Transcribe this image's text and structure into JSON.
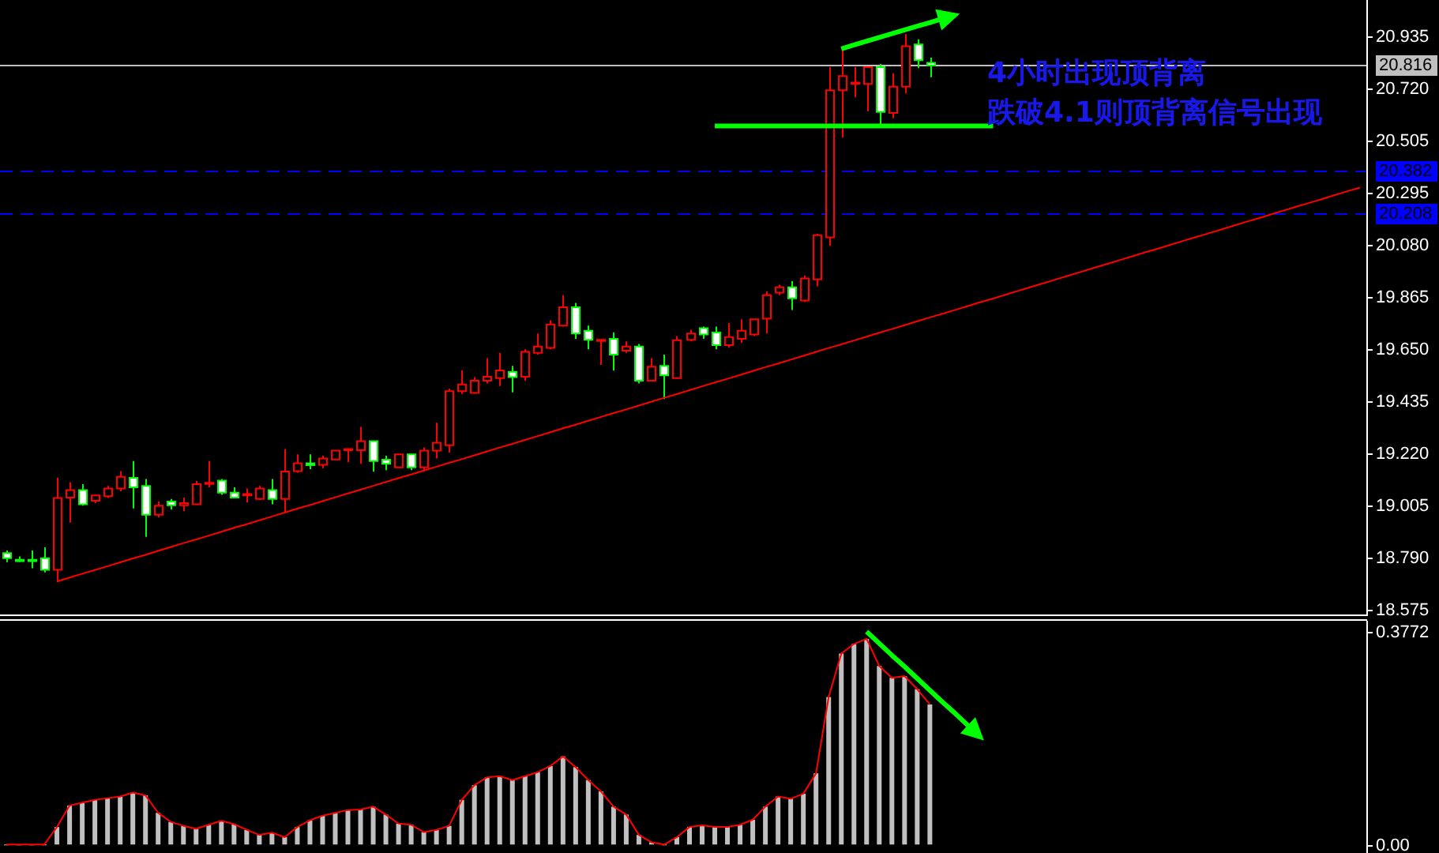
{
  "chart_data": [
    {
      "type": "candlestick",
      "categories": [
        null,
        null,
        null,
        null,
        null,
        null,
        null,
        null,
        null,
        null,
        null,
        null,
        null,
        null,
        null,
        null,
        null,
        null,
        null,
        null,
        null,
        null,
        null,
        null,
        null,
        null,
        null,
        null,
        null,
        null,
        null,
        null,
        null,
        null,
        null,
        null,
        null,
        null,
        null,
        null,
        null,
        null,
        null,
        null,
        null,
        null,
        null,
        null,
        null,
        null,
        null,
        null,
        null,
        null,
        null,
        null,
        null,
        null,
        null,
        null,
        null,
        null,
        null,
        null,
        null,
        null,
        null,
        null,
        null,
        null,
        null,
        null,
        null,
        null,
        null,
        null,
        null,
        null,
        null,
        null,
        null,
        null,
        null,
        null,
        null,
        null,
        null,
        null,
        null,
        null,
        null,
        null,
        null,
        null,
        null,
        null,
        null,
        null,
        null,
        null,
        null,
        null,
        null,
        null,
        null,
        null,
        null,
        null
      ],
      "ohlc": [
        [
          18.807,
          18.818,
          18.77,
          18.786
        ],
        [
          18.779,
          18.793,
          18.77,
          18.777
        ],
        [
          18.779,
          18.818,
          18.744,
          18.775
        ],
        [
          18.786,
          18.831,
          18.727,
          18.738
        ],
        [
          18.738,
          19.117,
          18.688,
          19.034
        ],
        [
          19.036,
          19.099,
          18.932,
          19.067
        ],
        [
          19.067,
          19.091,
          19.002,
          19.008
        ],
        [
          19.023,
          19.045,
          19.013,
          19.045
        ],
        [
          19.041,
          19.084,
          19.034,
          19.073
        ],
        [
          19.073,
          19.145,
          19.062,
          19.121
        ],
        [
          19.117,
          19.186,
          18.991,
          19.078
        ],
        [
          19.084,
          19.112,
          18.874,
          18.965
        ],
        [
          18.965,
          19.019,
          18.954,
          19.002
        ],
        [
          19.019,
          19.03,
          18.987,
          19.004
        ],
        [
          19.004,
          19.036,
          18.98,
          19.013
        ],
        [
          19.008,
          19.104,
          19.008,
          19.091
        ],
        [
          19.093,
          19.186,
          19.078,
          19.097
        ],
        [
          19.106,
          19.112,
          19.047,
          19.056
        ],
        [
          19.056,
          19.078,
          19.036,
          19.036
        ],
        [
          19.047,
          19.073,
          19.015,
          19.05
        ],
        [
          19.03,
          19.084,
          19.026,
          19.073
        ],
        [
          19.067,
          19.112,
          19.008,
          19.03
        ],
        [
          19.03,
          19.236,
          18.971,
          19.143
        ],
        [
          19.145,
          19.214,
          19.138,
          19.177
        ],
        [
          19.177,
          19.214,
          19.153,
          19.169
        ],
        [
          19.171,
          19.208,
          19.156,
          19.197
        ],
        [
          19.193,
          19.229,
          19.193,
          19.229
        ],
        [
          19.234,
          19.236,
          19.182,
          19.236
        ],
        [
          19.231,
          19.327,
          19.175,
          19.268
        ],
        [
          19.268,
          19.268,
          19.143,
          19.186
        ],
        [
          19.192,
          19.208,
          19.149,
          19.175
        ],
        [
          19.16,
          19.214,
          19.16,
          19.214
        ],
        [
          19.214,
          19.214,
          19.149,
          19.16
        ],
        [
          19.16,
          19.242,
          19.143,
          19.229
        ],
        [
          19.229,
          19.344,
          19.197,
          19.262
        ],
        [
          19.251,
          19.484,
          19.221,
          19.474
        ],
        [
          19.474,
          19.56,
          19.463,
          19.502
        ],
        [
          19.467,
          19.532,
          19.463,
          19.517
        ],
        [
          19.517,
          19.61,
          19.506,
          19.534
        ],
        [
          19.528,
          19.632,
          19.495,
          19.56
        ],
        [
          19.554,
          19.578,
          19.469,
          19.532
        ],
        [
          19.534,
          19.647,
          19.517,
          19.636
        ],
        [
          19.632,
          19.712,
          19.625,
          19.658
        ],
        [
          19.652,
          19.766,
          19.647,
          19.749
        ],
        [
          19.744,
          19.87,
          19.74,
          19.82
        ],
        [
          19.82,
          19.838,
          19.69,
          19.712
        ],
        [
          19.723,
          19.744,
          19.647,
          19.686
        ],
        [
          19.684,
          19.686,
          19.582,
          19.686
        ],
        [
          19.69,
          19.716,
          19.56,
          19.625
        ],
        [
          19.641,
          19.679,
          19.632,
          19.658
        ],
        [
          19.658,
          19.669,
          19.506,
          19.517
        ],
        [
          19.517,
          19.61,
          19.517,
          19.575
        ],
        [
          19.578,
          19.625,
          19.442,
          19.539
        ],
        [
          19.528,
          19.701,
          19.528,
          19.684
        ],
        [
          19.686,
          19.727,
          19.679,
          19.712
        ],
        [
          19.734,
          19.74,
          19.69,
          19.708
        ],
        [
          19.716,
          19.74,
          19.647,
          19.664
        ],
        [
          19.664,
          19.755,
          19.653,
          19.697
        ],
        [
          19.69,
          19.77,
          19.673,
          19.723
        ],
        [
          19.708,
          19.77,
          19.701,
          19.77
        ],
        [
          19.773,
          19.885,
          19.712,
          19.87
        ],
        [
          19.88,
          19.913,
          19.87,
          19.902
        ],
        [
          19.902,
          19.928,
          19.809,
          19.857
        ],
        [
          19.848,
          19.95,
          19.842,
          19.939
        ],
        [
          19.935,
          20.123,
          19.906,
          20.117
        ],
        [
          20.108,
          20.809,
          20.073,
          20.714
        ],
        [
          20.714,
          20.88,
          20.519,
          20.773
        ],
        [
          20.742,
          20.809,
          20.686,
          20.746
        ],
        [
          20.74,
          20.809,
          20.627,
          20.809
        ],
        [
          20.809,
          20.822,
          20.567,
          20.625
        ],
        [
          20.621,
          20.783,
          20.599,
          20.729
        ],
        [
          20.729,
          20.945,
          20.701,
          20.896
        ],
        [
          20.903,
          20.924,
          20.805,
          20.838
        ],
        [
          20.827,
          20.848,
          20.768,
          20.816
        ],
        null,
        null,
        null,
        null,
        null,
        null,
        null,
        null,
        null,
        null,
        null,
        null,
        null,
        null,
        null,
        null,
        null,
        null,
        null,
        null,
        null,
        null,
        null,
        null,
        null,
        null,
        null,
        null,
        null,
        null,
        null,
        null,
        null,
        null
      ],
      "colors": [
        "#00ff00",
        "#00ff00",
        "#00ff00",
        "#00ff00",
        "#ff0000",
        "#ff0000",
        "#00ff00",
        "#ff0000",
        "#ff0000",
        "#ff0000",
        "#00ff00",
        "#00ff00",
        "#ff0000",
        "#00ff00",
        "#ff0000",
        "#ff0000",
        "#ff0000",
        "#00ff00",
        "#00ff00",
        "#ff0000",
        "#ff0000",
        "#00ff00",
        "#ff0000",
        "#ff0000",
        "#00ff00",
        "#ff0000",
        "#ff0000",
        "#ff0000",
        "#ff0000",
        "#00ff00",
        "#00ff00",
        "#ff0000",
        "#00ff00",
        "#ff0000",
        "#ff0000",
        "#ff0000",
        "#ff0000",
        "#ff0000",
        "#ff0000",
        "#ff0000",
        "#00ff00",
        "#ff0000",
        "#ff0000",
        "#ff0000",
        "#ff0000",
        "#00ff00",
        "#00ff00",
        "#ff0000",
        "#00ff00",
        "#ff0000",
        "#00ff00",
        "#ff0000",
        "#00ff00",
        "#ff0000",
        "#ff0000",
        "#00ff00",
        "#00ff00",
        "#ff0000",
        "#ff0000",
        "#ff0000",
        "#ff0000",
        "#ff0000",
        "#00ff00",
        "#ff0000",
        "#ff0000",
        "#ff0000",
        "#ff0000",
        "#ff0000",
        "#ff0000",
        "#00ff00",
        "#ff0000",
        "#ff0000",
        "#00ff00",
        "#00ff00",
        null,
        null,
        null,
        null,
        null,
        null,
        null,
        null,
        null,
        null,
        null,
        null,
        null,
        null,
        null,
        null,
        null,
        null,
        null,
        null,
        null,
        null,
        null,
        null,
        null,
        null,
        null,
        null,
        null,
        null,
        null,
        null,
        null,
        null
      ],
      "series": [
        {
          "type": "line",
          "color": "#ff0000",
          "values": [
            null,
            null,
            null,
            null,
            18.69,
            18.706,
            18.722,
            18.737,
            18.753,
            18.769,
            18.785,
            18.8,
            18.816,
            18.832,
            18.848,
            18.863,
            18.879,
            18.895,
            18.911,
            18.926,
            18.942,
            18.958,
            18.974,
            18.99,
            19.005,
            19.021,
            19.037,
            19.053,
            19.068,
            19.084,
            19.1,
            19.116,
            19.131,
            19.147,
            19.163,
            19.179,
            19.194,
            19.21,
            19.226,
            19.242,
            19.257,
            19.273,
            19.289,
            19.305,
            19.321,
            19.336,
            19.352,
            19.368,
            19.384,
            19.399,
            19.415,
            19.431,
            19.447,
            19.462,
            19.478,
            19.494,
            19.51,
            19.525,
            19.541,
            19.557,
            19.573,
            19.588,
            19.604,
            19.62,
            19.636,
            19.652,
            19.667,
            19.683,
            19.699,
            19.715,
            19.73,
            19.746,
            19.762,
            19.778,
            19.793,
            19.809,
            19.825,
            19.841,
            19.856,
            19.872,
            19.888,
            19.904,
            19.919,
            19.935,
            19.951,
            19.967,
            19.983,
            19.998,
            20.014,
            20.03,
            20.046,
            20.061,
            20.077,
            20.093,
            20.109,
            20.124,
            20.14,
            20.156,
            20.172,
            20.187,
            20.203,
            20.219,
            20.235,
            20.25,
            20.266,
            20.282,
            20.298,
            20.313
          ]
        },
        {
          "type": "line",
          "color": "#00ff00",
          "values": [
            null,
            null,
            null,
            null,
            null,
            null,
            null,
            null,
            null,
            null,
            null,
            null,
            null,
            null,
            null,
            null,
            null,
            null,
            null,
            null,
            null,
            null,
            null,
            null,
            null,
            null,
            null,
            null,
            null,
            null,
            null,
            null,
            null,
            null,
            null,
            null,
            null,
            null,
            null,
            null,
            null,
            null,
            null,
            null,
            null,
            null,
            null,
            null,
            null,
            null,
            null,
            null,
            null,
            null,
            null,
            null,
            20.567,
            20.567,
            20.567,
            20.567,
            20.567,
            20.567,
            20.567,
            20.567,
            20.567,
            20.567,
            20.567,
            20.567,
            20.567,
            20.567,
            20.567,
            20.567,
            20.567,
            20.567,
            20.567,
            20.567,
            20.567,
            20.567,
            20.567,
            null,
            null,
            null,
            null,
            null,
            null,
            null,
            null,
            null,
            null,
            null,
            null,
            null,
            null,
            null,
            null,
            null,
            null,
            null,
            null,
            null,
            null,
            null,
            null,
            null,
            null,
            null,
            null,
            null
          ]
        },
        {
          "type": "line",
          "color": "#00ff00",
          "values": [
            null,
            null,
            null,
            null,
            null,
            null,
            null,
            null,
            null,
            null,
            null,
            null,
            null,
            null,
            null,
            null,
            null,
            null,
            null,
            null,
            null,
            null,
            null,
            null,
            null,
            null,
            null,
            null,
            null,
            null,
            null,
            null,
            null,
            null,
            null,
            null,
            null,
            null,
            null,
            null,
            null,
            null,
            null,
            null,
            null,
            null,
            null,
            null,
            null,
            null,
            null,
            null,
            null,
            null,
            null,
            null,
            null,
            null,
            null,
            null,
            null,
            null,
            null,
            null,
            null,
            null,
            20.885,
            20.901,
            20.916,
            20.932,
            20.947,
            20.963,
            20.978,
            20.993,
            21.009,
            21.024,
            null,
            null,
            null,
            null,
            null,
            null,
            null,
            null,
            null,
            null,
            null,
            null,
            null,
            null,
            null,
            null,
            null,
            null,
            null,
            null,
            null,
            null,
            null,
            null,
            null,
            null,
            null,
            null,
            null,
            null,
            null,
            null
          ]
        }
      ],
      "ref_lines": [
        {
          "axis": "y",
          "value": 20.816,
          "label": "20.816",
          "color": "#c0c0c0",
          "line_style": "solid"
        },
        {
          "axis": "y",
          "value": 20.382,
          "label": "20.382",
          "color": "#0000ff",
          "line_style": "dashed"
        },
        {
          "axis": "y",
          "value": 20.208,
          "label": "20.208",
          "color": "#0000ff",
          "line_style": "dashed"
        }
      ],
      "annotations": [
        "4小时出现顶背离",
        "跌破4.1则顶背离信号出现"
      ],
      "ylim": [
        18.554,
        21.086
      ],
      "yticks": [
        {
          "value": 20.935,
          "label": "20.935"
        },
        {
          "value": 20.72,
          "label": "20.720"
        },
        {
          "value": 20.505,
          "label": "20.505"
        },
        {
          "value": 20.295,
          "label": "20.295"
        },
        {
          "value": 20.08,
          "label": "20.080"
        },
        {
          "value": 19.865,
          "label": "19.865"
        },
        {
          "value": 19.65,
          "label": "19.650"
        },
        {
          "value": 19.435,
          "label": "19.435"
        },
        {
          "value": 19.22,
          "label": "19.220"
        },
        {
          "value": 19.005,
          "label": "19.005"
        },
        {
          "value": 18.79,
          "label": "18.790"
        },
        {
          "value": 18.575,
          "label": "18.575"
        }
      ],
      "tick_labels": "y"
    },
    {
      "type": "bar",
      "categories": [
        null,
        null,
        null,
        null,
        null,
        null,
        null,
        null,
        null,
        null,
        null,
        null,
        null,
        null,
        null,
        null,
        null,
        null,
        null,
        null,
        null,
        null,
        null,
        null,
        null,
        null,
        null,
        null,
        null,
        null,
        null,
        null,
        null,
        null,
        null,
        null,
        null,
        null,
        null,
        null,
        null,
        null,
        null,
        null,
        null,
        null,
        null,
        null,
        null,
        null,
        null,
        null,
        null,
        null,
        null,
        null,
        null,
        null,
        null,
        null,
        null,
        null,
        null,
        null,
        null,
        null,
        null,
        null,
        null,
        null,
        null,
        null,
        null,
        null,
        null,
        null,
        null,
        null,
        null,
        null,
        null,
        null,
        null,
        null,
        null,
        null,
        null,
        null,
        null,
        null,
        null,
        null,
        null,
        null,
        null,
        null,
        null,
        null,
        null,
        null,
        null,
        null,
        null,
        null,
        null,
        null,
        null,
        null
      ],
      "series": [
        {
          "type": "bar",
          "color": "#c0c0c0",
          "values": [
            0,
            0,
            0,
            0,
            0.031,
            0.069,
            0.074,
            0.079,
            0.082,
            0.085,
            0.092,
            0.087,
            0.056,
            0.04,
            0.033,
            0.028,
            0.035,
            0.042,
            0.036,
            0.026,
            0.017,
            0.021,
            0.013,
            0.031,
            0.043,
            0.051,
            0.056,
            0.061,
            0.062,
            0.067,
            0.053,
            0.037,
            0.035,
            0.022,
            0.026,
            0.033,
            0.079,
            0.105,
            0.119,
            0.121,
            0.114,
            0.121,
            0.128,
            0.139,
            0.156,
            0.137,
            0.114,
            0.094,
            0.067,
            0.053,
            0.017,
            0.004,
            0,
            0.013,
            0.031,
            0.034,
            0.031,
            0.031,
            0.035,
            0.044,
            0.067,
            0.085,
            0.081,
            0.09,
            0.126,
            0.261,
            0.338,
            0.355,
            0.364,
            0.316,
            0.295,
            0.298,
            0.275,
            0.248,
            null,
            null,
            null,
            null,
            null,
            null,
            null,
            null,
            null,
            null,
            null,
            null,
            null,
            null,
            null,
            null,
            null,
            null,
            null,
            null,
            null,
            null,
            null,
            null,
            null,
            null,
            null,
            null,
            null,
            null,
            null,
            null,
            null,
            null
          ]
        },
        {
          "type": "line",
          "color": "#ff0000",
          "values": [
            0,
            0,
            0,
            0,
            0.031,
            0.069,
            0.074,
            0.079,
            0.082,
            0.085,
            0.092,
            0.087,
            0.056,
            0.04,
            0.033,
            0.028,
            0.035,
            0.042,
            0.036,
            0.026,
            0.017,
            0.021,
            0.013,
            0.031,
            0.043,
            0.051,
            0.056,
            0.061,
            0.062,
            0.067,
            0.053,
            0.037,
            0.035,
            0.022,
            0.026,
            0.033,
            0.079,
            0.105,
            0.119,
            0.121,
            0.114,
            0.121,
            0.128,
            0.139,
            0.156,
            0.137,
            0.114,
            0.094,
            0.067,
            0.053,
            0.017,
            0.004,
            0,
            0.013,
            0.031,
            0.034,
            0.031,
            0.031,
            0.035,
            0.044,
            0.067,
            0.085,
            0.081,
            0.09,
            0.126,
            0.261,
            0.338,
            0.355,
            0.364,
            0.316,
            0.295,
            0.298,
            0.275,
            0.248,
            null,
            null,
            null,
            null,
            null,
            null,
            null,
            null,
            null,
            null,
            null,
            null,
            null,
            null,
            null,
            null,
            null,
            null,
            null,
            null,
            null,
            null,
            null,
            null,
            null,
            null,
            null,
            null,
            null,
            null,
            null,
            null,
            null,
            null
          ]
        },
        {
          "type": "line",
          "color": "#00ff00",
          "values": [
            null,
            null,
            null,
            null,
            null,
            null,
            null,
            null,
            null,
            null,
            null,
            null,
            null,
            null,
            null,
            null,
            null,
            null,
            null,
            null,
            null,
            null,
            null,
            null,
            null,
            null,
            null,
            null,
            null,
            null,
            null,
            null,
            null,
            null,
            null,
            null,
            null,
            null,
            null,
            null,
            null,
            null,
            null,
            null,
            null,
            null,
            null,
            null,
            null,
            null,
            null,
            null,
            null,
            null,
            null,
            null,
            null,
            null,
            null,
            null,
            null,
            null,
            null,
            null,
            null,
            null,
            null,
            null,
            0.377,
            0.356,
            0.335,
            0.315,
            0.294,
            0.273,
            0.252,
            0.232,
            0.211,
            0.19,
            null,
            null,
            null,
            null,
            null,
            null,
            null,
            null,
            null,
            null,
            null,
            null,
            null,
            null,
            null,
            null,
            null,
            null,
            null,
            null,
            null,
            null,
            null,
            null,
            null,
            null,
            null,
            null,
            null,
            null
          ]
        }
      ],
      "ylim": [
        -0.015,
        0.396
      ],
      "yticks": [
        0.3772,
        {
          "value": 0,
          "label": "0.00"
        }
      ],
      "tick_labels": "y"
    }
  ]
}
